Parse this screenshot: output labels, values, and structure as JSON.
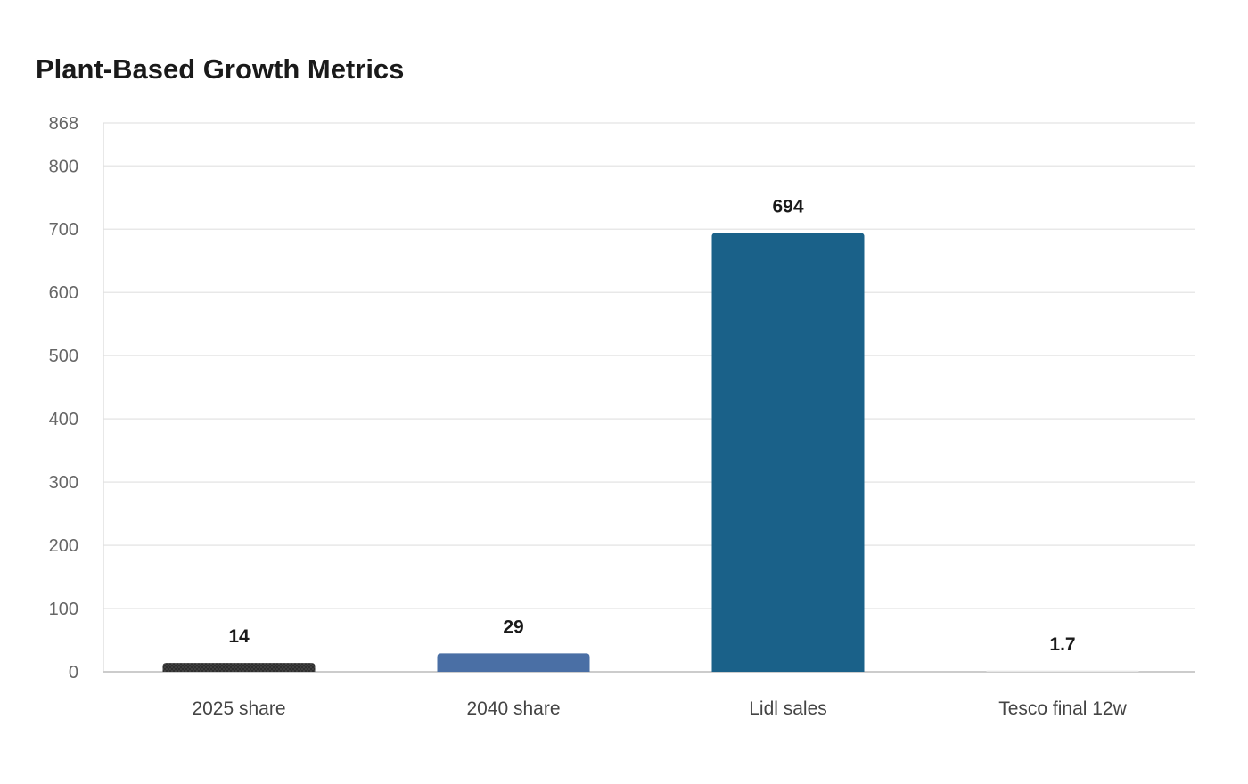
{
  "chart_data": {
    "type": "bar",
    "title": "Plant-Based Growth Metrics",
    "xlabel": "",
    "ylabel": "",
    "categories": [
      "2025 share",
      "2040 share",
      "Lidl sales",
      "Tesco final 12w"
    ],
    "values": [
      14,
      29,
      694,
      1.7
    ],
    "data_labels": [
      "14",
      "29",
      "694",
      "1.7"
    ],
    "ylim": [
      0,
      868
    ],
    "yticks": [
      0,
      100,
      200,
      300,
      400,
      500,
      600,
      700,
      800,
      868
    ],
    "grid": true,
    "legend": "none",
    "colors": [
      "#333333",
      "#4a6fa5",
      "#1a6189",
      "#e6e6e6"
    ]
  }
}
